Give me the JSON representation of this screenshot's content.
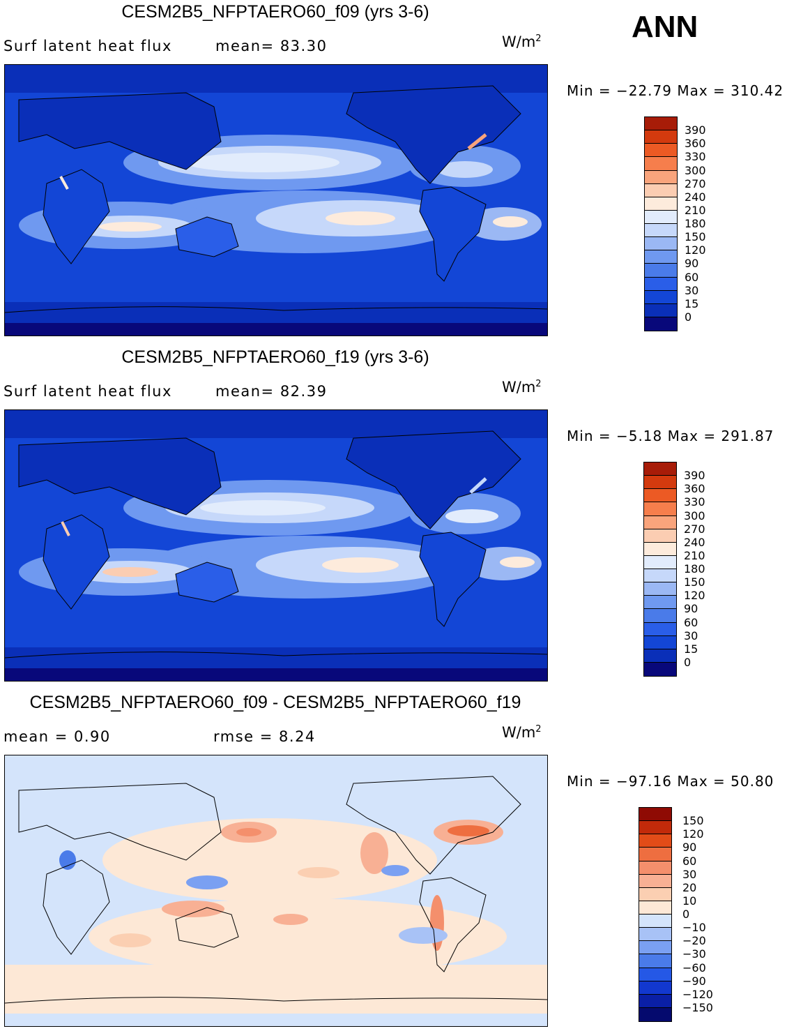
{
  "season_label": "ANN",
  "colors": {
    "abs_scale": [
      "#08087a",
      "#0a2fb8",
      "#1346d6",
      "#2a5ee8",
      "#4a7be9",
      "#6f99f0",
      "#9bb8f4",
      "#c6d8fa",
      "#e2ecfc",
      "#fdebdc",
      "#fbcdb2",
      "#f9a47c",
      "#f67e4c",
      "#ec5a24",
      "#d33a0e",
      "#a71c08",
      "#850b04"
    ],
    "diff_scale": [
      "#050a6e",
      "#0a1fa6",
      "#1238cf",
      "#2558e6",
      "#4a7be9",
      "#7aa0f2",
      "#a8c2f6",
      "#d4e4fb",
      "#fde8d6",
      "#fbcfb2",
      "#f8b094",
      "#f48f6c",
      "#ee6e40",
      "#e24c18",
      "#c22a0a",
      "#8f0b04"
    ]
  },
  "panels": [
    {
      "title": "CESM2B5_NFPTAERO60_f09 (yrs 3-6)",
      "stat_left": "Surf  latent  heat  flux",
      "stat_right": "mean=   83.30",
      "units": "W/m",
      "units_exp": "2",
      "minmax": "Min  =  −22.79  Max  =  310.42",
      "colorbar_labels": [
        "390",
        "360",
        "330",
        "300",
        "270",
        "240",
        "210",
        "180",
        "150",
        "120",
        "90",
        "60",
        "30",
        "15",
        "0"
      ]
    },
    {
      "title": "CESM2B5_NFPTAERO60_f19 (yrs 3-6)",
      "stat_left": "Surf  latent  heat  flux",
      "stat_right": "mean=   82.39",
      "units": "W/m",
      "units_exp": "2",
      "minmax": "Min  =    −5.18  Max  =  291.87",
      "colorbar_labels": [
        "390",
        "360",
        "330",
        "300",
        "270",
        "240",
        "210",
        "180",
        "150",
        "120",
        "90",
        "60",
        "30",
        "15",
        "0"
      ]
    },
    {
      "title": "CESM2B5_NFPTAERO60_f09 - CESM2B5_NFPTAERO60_f19",
      "stat_left": "mean  =     0.90",
      "stat_right": "rmse  =     8.24",
      "units": "W/m",
      "units_exp": "2",
      "minmax": "Min  =  −97.16  Max  =    50.80",
      "colorbar_labels": [
        "150",
        "120",
        "90",
        "60",
        "30",
        "20",
        "10",
        "0",
        "−10",
        "−20",
        "−30",
        "−60",
        "−90",
        "−120",
        "−150"
      ]
    }
  ],
  "chart_data": [
    {
      "type": "heatmap",
      "title": "CESM2B5_NFPTAERO60_f09 (yrs 3-6)",
      "variable": "Surf latent heat flux",
      "units": "W/m2",
      "mean": 83.3,
      "min": -22.79,
      "max": 310.42,
      "contour_levels": [
        0,
        15,
        30,
        60,
        90,
        120,
        150,
        180,
        210,
        240,
        270,
        300,
        330,
        360,
        390
      ],
      "projection": "global cylindrical equidistant",
      "xlim": [
        0,
        360
      ],
      "ylim": [
        -90,
        90
      ]
    },
    {
      "type": "heatmap",
      "title": "CESM2B5_NFPTAERO60_f19 (yrs 3-6)",
      "variable": "Surf latent heat flux",
      "units": "W/m2",
      "mean": 82.39,
      "min": -5.18,
      "max": 291.87,
      "contour_levels": [
        0,
        15,
        30,
        60,
        90,
        120,
        150,
        180,
        210,
        240,
        270,
        300,
        330,
        360,
        390
      ],
      "projection": "global cylindrical equidistant",
      "xlim": [
        0,
        360
      ],
      "ylim": [
        -90,
        90
      ]
    },
    {
      "type": "heatmap",
      "title": "CESM2B5_NFPTAERO60_f09 - CESM2B5_NFPTAERO60_f19",
      "units": "W/m2",
      "mean": 0.9,
      "rmse": 8.24,
      "min": -97.16,
      "max": 50.8,
      "contour_levels": [
        -150,
        -120,
        -90,
        -60,
        -30,
        -20,
        -10,
        0,
        10,
        20,
        30,
        60,
        90,
        120,
        150
      ],
      "projection": "global cylindrical equidistant",
      "xlim": [
        0,
        360
      ],
      "ylim": [
        -90,
        90
      ]
    }
  ]
}
